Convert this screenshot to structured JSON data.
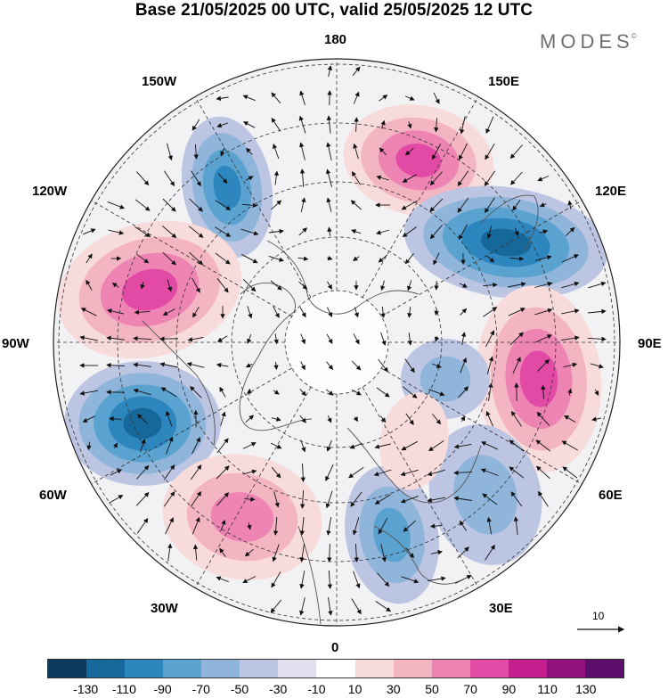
{
  "title": "Base 21/05/2025 00 UTC, valid 25/05/2025 12 UTC",
  "brand": "MODES",
  "brand_mark": "©",
  "longitude_labels": {
    "lon_180": "180",
    "lon_150e": "150E",
    "lon_120e": "120E",
    "lon_90e": "90E",
    "lon_60e": "60E",
    "lon_30e": "30E",
    "lon_0": "0",
    "lon_30w": "30W",
    "lon_60w": "60W",
    "lon_90w": "90W",
    "lon_120w": "120W",
    "lon_150w": "150W"
  },
  "reference_vector_label": "10",
  "colorbar": {
    "colors": [
      "#0d3b5e",
      "#16679a",
      "#2e86bf",
      "#5aa3d0",
      "#8fb5db",
      "#bcc5e2",
      "#e2e0ee",
      "#ffffff",
      "#f8dcdc",
      "#f3b5c2",
      "#ee84b4",
      "#e24aa5",
      "#c41e8f",
      "#92107a",
      "#5b0e6b"
    ],
    "tick_labels": [
      "-130",
      "-110",
      "-90",
      "-70",
      "-50",
      "-30",
      "-10",
      "10",
      "30",
      "50",
      "70",
      "90",
      "110",
      "130"
    ]
  },
  "map_data": {
    "projection": "north-polar-stereographic",
    "field": "geopotential height anomaly with wind vectors",
    "anomaly_centers": [
      {
        "sign": "negative",
        "near": "150W-Pacific",
        "peak": -90
      },
      {
        "sign": "positive",
        "near": "150E-Kamchatka",
        "peak": 90
      },
      {
        "sign": "negative",
        "near": "120E-Siberia",
        "peak": -110
      },
      {
        "sign": "positive",
        "near": "105W-Canada",
        "peak": 90
      },
      {
        "sign": "positive",
        "near": "80E-Central Asia",
        "peak": 90
      },
      {
        "sign": "negative",
        "near": "65W-Atlantic",
        "peak": -110
      },
      {
        "sign": "positive",
        "near": "35W-Atlantic",
        "peak": 70
      },
      {
        "sign": "negative",
        "near": "15E-Mediterranean",
        "peak": -70
      },
      {
        "sign": "negative",
        "near": "45E-Russia",
        "peak": -50
      },
      {
        "sign": "negative",
        "near": "60E-Arctic",
        "peak": -50
      },
      {
        "sign": "positive",
        "near": "30E-Scandinavia",
        "peak": 30
      }
    ]
  }
}
